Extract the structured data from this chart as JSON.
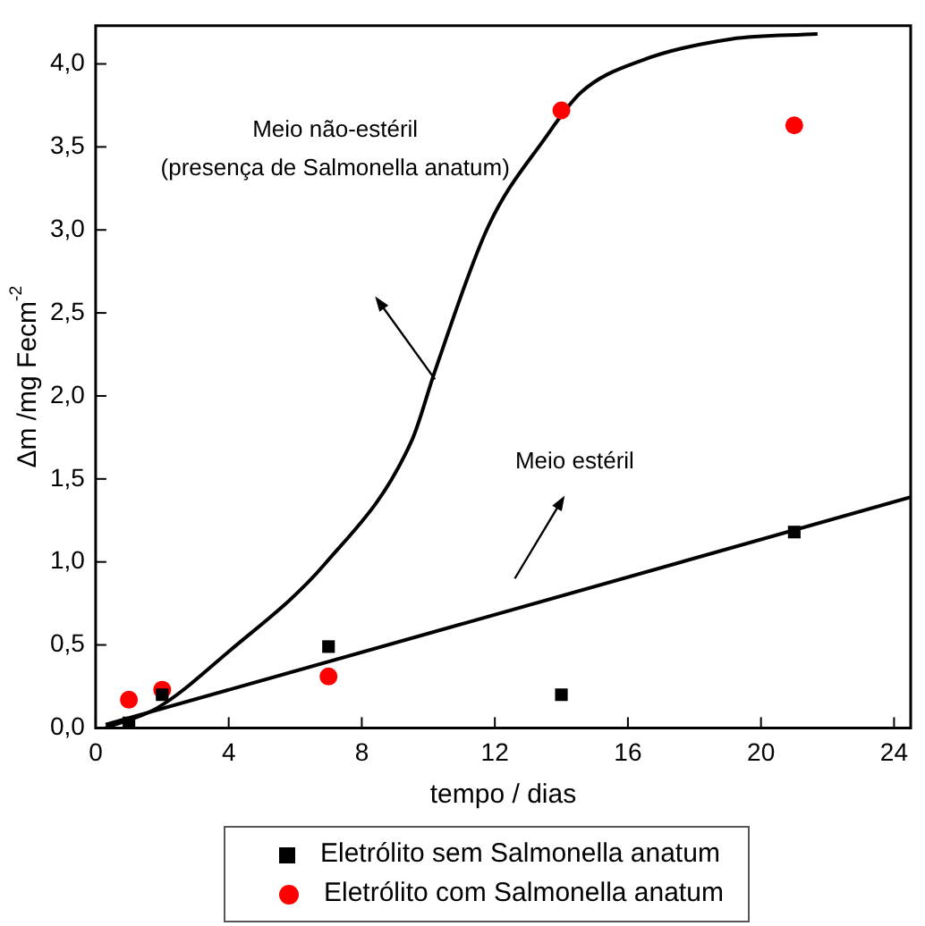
{
  "chart_data": {
    "type": "scatter",
    "xlabel": "tempo / dias",
    "ylabel": "Δm /mg Fecm$^{-2}$",
    "xlim": [
      0,
      24.5
    ],
    "ylim": [
      0,
      4.23
    ],
    "xticks": [
      0,
      4,
      8,
      12,
      16,
      20,
      24
    ],
    "yticks": [
      {
        "value": 0,
        "label": "0,0"
      },
      {
        "value": 0.5,
        "label": "0,5"
      },
      {
        "value": 1,
        "label": "1,0"
      },
      {
        "value": 1.5,
        "label": "1,5"
      },
      {
        "value": 2,
        "label": "2,0"
      },
      {
        "value": 2.5,
        "label": "2,5"
      },
      {
        "value": 3,
        "label": "3,0"
      },
      {
        "value": 3.5,
        "label": "3,5"
      },
      {
        "value": 4,
        "label": "4,0"
      }
    ],
    "legend": "bottom",
    "grid": false,
    "series": [
      {
        "name": "Eletrólito sem Salmonella anatum",
        "color": "#000000",
        "marker": "square",
        "x": [
          1,
          2,
          7,
          14,
          21
        ],
        "values": [
          0.03,
          0.2,
          0.49,
          0.2,
          1.18
        ]
      },
      {
        "name": "Eletrólito com Salmonella anatum",
        "color": "#ff0000",
        "marker": "circle",
        "x": [
          1,
          2,
          7,
          14,
          21
        ],
        "values": [
          0.17,
          0.23,
          0.31,
          3.72,
          3.63
        ]
      },
      {
        "type": "line",
        "color": "#000000",
        "marker": "none",
        "x": [
          0.3,
          24.5
        ],
        "values": [
          0.02,
          1.39
        ]
      },
      {
        "type": "line",
        "color": "#000000",
        "marker": "none",
        "x": [
          0.3,
          1.85,
          4.0,
          6.9,
          9.5,
          10.2,
          11.8,
          13.5,
          14.6,
          16.4,
          19.1,
          21.7
        ],
        "values": [
          0.0,
          0.12,
          0.46,
          0.99,
          1.73,
          2.15,
          3.02,
          3.55,
          3.83,
          4.02,
          4.15,
          4.18
        ]
      }
    ],
    "annotations": [
      "Meio não-estéril",
      "(presença de Salmonella anatum)",
      "Meio estéril"
    ]
  }
}
